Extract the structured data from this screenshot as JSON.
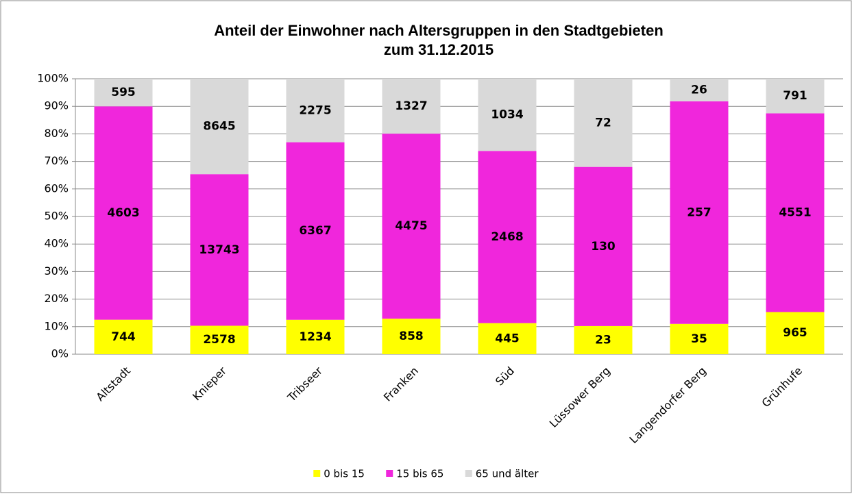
{
  "chart_data": {
    "type": "bar",
    "stacking": "percent",
    "title": "Anteil der Einwohner nach Altersgruppen in den Stadtgebieten",
    "subtitle": "zum 31.12.2015",
    "categories": [
      "Altstadt",
      "Knieper",
      "Tribseer",
      "Franken",
      "Süd",
      "Lüssower Berg",
      "Langendorfer Berg",
      "Grünhufe"
    ],
    "series": [
      {
        "name": "0 bis 15",
        "color": "#ffff00",
        "values": [
          744,
          2578,
          1234,
          858,
          445,
          23,
          35,
          965
        ]
      },
      {
        "name": "15 bis 65",
        "color": "#f026dc",
        "values": [
          4603,
          13743,
          6367,
          4475,
          2468,
          130,
          257,
          4551
        ]
      },
      {
        "name": "65 und älter",
        "color": "#d9d9d9",
        "values": [
          595,
          8645,
          2275,
          1327,
          1034,
          72,
          26,
          791
        ]
      }
    ],
    "ylim": [
      0,
      100
    ],
    "yticks": [
      {
        "value": 0,
        "label": "0%"
      },
      {
        "value": 10,
        "label": "10%"
      },
      {
        "value": 20,
        "label": "20%"
      },
      {
        "value": 30,
        "label": "30%"
      },
      {
        "value": 40,
        "label": "40%"
      },
      {
        "value": 50,
        "label": "50%"
      },
      {
        "value": 60,
        "label": "60%"
      },
      {
        "value": 70,
        "label": "70%"
      },
      {
        "value": 80,
        "label": "80%"
      },
      {
        "value": 90,
        "label": "90%"
      },
      {
        "value": 100,
        "label": "100%"
      }
    ],
    "grid": true,
    "legend": "bottom"
  }
}
